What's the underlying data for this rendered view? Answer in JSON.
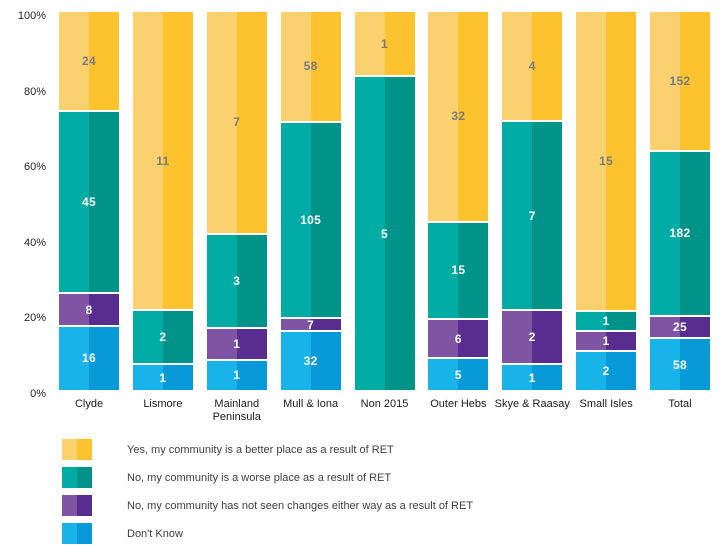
{
  "chart_data": {
    "type": "bar",
    "subtype": "100%-stacked-vertical",
    "title": "",
    "xlabel": "",
    "ylabel": "",
    "grid": false,
    "legend_position": "bottom-left",
    "ylim": [
      0,
      100
    ],
    "y_ticks": [
      {
        "label": "100%",
        "value": 100
      },
      {
        "label": "80%",
        "value": 80
      },
      {
        "label": "60%",
        "value": 60
      },
      {
        "label": "40%",
        "value": 40
      },
      {
        "label": "20%",
        "value": 20
      },
      {
        "label": "0%",
        "value": 0
      }
    ],
    "categories": [
      "Clyde",
      "Lismore",
      "Mainland Peninsula",
      "Mull & Iona",
      "Non 2015",
      "Outer Hebs",
      "Skye & Raasay",
      "Small Isles",
      "Total"
    ],
    "x_display_labels": [
      "Clyde",
      "Lismore",
      "Mainland\nPeninsula",
      "Mull & Iona",
      "Non 2015",
      "Outer Hebs",
      "Skye & Raasay",
      "Small Isles",
      "Total"
    ],
    "series": [
      {
        "name": "Yes, my community is a better place as a result of RET",
        "values": [
          24,
          11,
          7,
          58,
          1,
          32,
          4,
          15,
          152
        ],
        "color_light": "#FBD06E",
        "color_dark": "#FCC32F",
        "label_color": "#7A7B7F"
      },
      {
        "name": "No, my community is a worse place as a result of RET",
        "values": [
          45,
          2,
          3,
          105,
          5,
          15,
          7,
          1,
          182
        ],
        "color_light": "#00ACA3",
        "color_dark": "#00938A",
        "label_color": "#FFFFFF"
      },
      {
        "name": "No, my community has not seen changes either way as a result of RET",
        "values": [
          8,
          0,
          1,
          7,
          0,
          6,
          2,
          1,
          25
        ],
        "color_light": "#7F54A3",
        "color_dark": "#592C90",
        "label_color": "#FFFFFF"
      },
      {
        "name": "Don't Know",
        "values": [
          16,
          1,
          1,
          32,
          0,
          5,
          1,
          2,
          58
        ],
        "color_light": "#18B3E9",
        "color_dark": "#0899D8",
        "label_color": "#FFFFFF"
      }
    ]
  },
  "layout_text": {
    "note": ""
  }
}
